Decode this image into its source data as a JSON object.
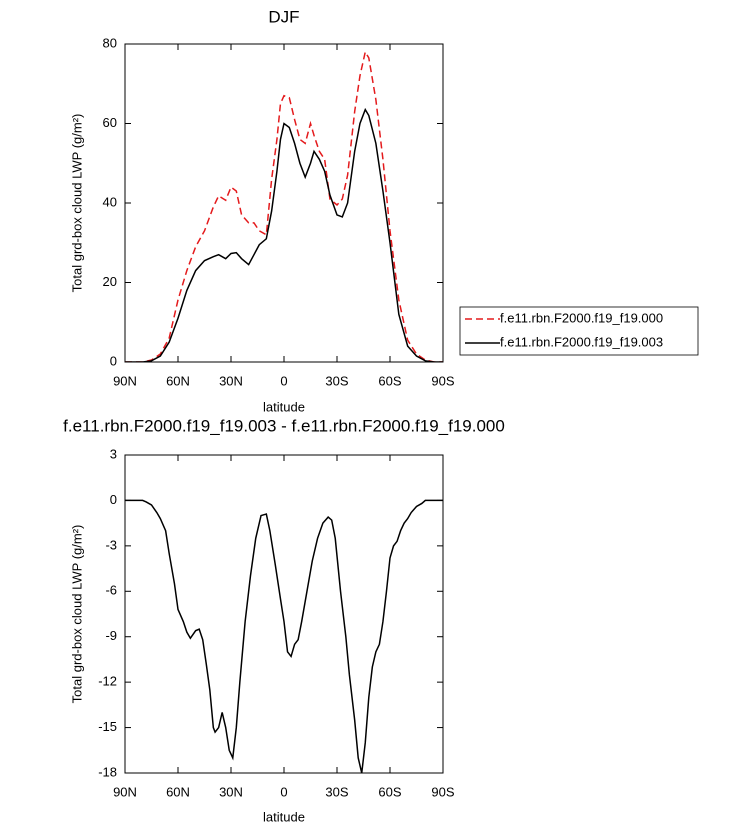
{
  "chart_data": [
    {
      "type": "line",
      "title": "DJF",
      "x_label": "latitude",
      "y_label": "Total grd-box cloud LWP (g/m²)",
      "x": [
        90,
        85,
        80,
        75,
        70,
        65,
        60,
        55,
        50,
        45,
        40,
        37,
        33,
        30,
        27,
        24,
        20,
        17,
        14,
        10,
        7,
        4,
        2,
        0,
        -3,
        -6,
        -9,
        -12,
        -15,
        -17,
        -20,
        -23,
        -26,
        -30,
        -33,
        -36,
        -40,
        -43,
        -46,
        -48,
        -52,
        -56,
        -60,
        -65,
        -70,
        -75,
        -80,
        -85,
        -90
      ],
      "series": [
        {
          "name": "f.e11.rbn.F2000.f19_f19.000",
          "color": "#e41a1c",
          "line_style": "dashed",
          "values": [
            0,
            0,
            0,
            0.5,
            2,
            6,
            15.6,
            23,
            29,
            33,
            39,
            41.8,
            40.7,
            44,
            43,
            37,
            35,
            35,
            33,
            32,
            46,
            56,
            65,
            67,
            66.5,
            61,
            56,
            55,
            60,
            57,
            53,
            51,
            41,
            39.5,
            41,
            47,
            63,
            72,
            78,
            76.5,
            66,
            51,
            33,
            15.6,
            5.5,
            2,
            0.5,
            0,
            0
          ]
        },
        {
          "name": "f.e11.rbn.F2000.f19_f19.003",
          "color": "#000000",
          "line_style": "solid",
          "values": [
            0,
            0,
            0,
            0.3,
            1.5,
            5,
            11,
            18,
            23,
            25.5,
            26.5,
            27,
            26,
            27.3,
            27.5,
            26,
            24.5,
            27,
            29.5,
            31,
            38,
            48,
            56,
            60,
            59,
            55,
            50,
            46.5,
            50,
            53,
            51,
            48,
            42,
            37,
            36.5,
            40,
            53,
            60,
            63.5,
            62,
            55,
            43,
            30,
            12,
            4,
            1.5,
            0.3,
            0,
            0
          ]
        }
      ],
      "xlim": [
        90,
        -90
      ],
      "xticks": [
        {
          "value": 90,
          "label": "90N"
        },
        {
          "value": 60,
          "label": "60N"
        },
        {
          "value": 30,
          "label": "30N"
        },
        0,
        {
          "value": -30,
          "label": "30S"
        },
        {
          "value": -60,
          "label": "60S"
        },
        {
          "value": -90,
          "label": "90S"
        }
      ],
      "ylim": [
        0,
        80
      ],
      "yticks": [
        0,
        20,
        40,
        60,
        80
      ],
      "legend": "right"
    },
    {
      "type": "line",
      "title": "f.e11.rbn.F2000.f19_f19.003 - f.e11.rbn.F2000.f19_f19.000",
      "x_label": "latitude",
      "y_label": "Total grd-box cloud LWP (g/m²)",
      "x": [
        90,
        85,
        80,
        78,
        75,
        72,
        70,
        67,
        65,
        62,
        60,
        57,
        55,
        53,
        50,
        48,
        46,
        44,
        42,
        40,
        39,
        37,
        35,
        33,
        31,
        29,
        27,
        25,
        22,
        19,
        16,
        13,
        10,
        8,
        5,
        2,
        0,
        -2,
        -4,
        -6,
        -8,
        -10,
        -13,
        -16,
        -19,
        -22,
        -25,
        -27,
        -29,
        -32,
        -35,
        -37,
        -40,
        -42,
        -44,
        -46,
        -48,
        -50,
        -52,
        -54,
        -56,
        -58,
        -60,
        -62,
        -64,
        -66,
        -68,
        -70,
        -72,
        -75,
        -78,
        -80,
        -82,
        -85,
        -90
      ],
      "series": [
        {
          "color": "#000000",
          "line_style": "solid",
          "values": [
            0,
            0,
            0,
            -0.1,
            -0.3,
            -0.8,
            -1.2,
            -2,
            -3.5,
            -5.5,
            -7.2,
            -8,
            -8.7,
            -9.1,
            -8.6,
            -8.5,
            -9.2,
            -10.8,
            -12.5,
            -15,
            -15.3,
            -15,
            -14,
            -15,
            -16.5,
            -17,
            -15,
            -12,
            -8,
            -5,
            -2.5,
            -1,
            -0.9,
            -2,
            -4.2,
            -6.5,
            -8,
            -10,
            -10.3,
            -9.5,
            -9.2,
            -8,
            -6,
            -4,
            -2.5,
            -1.5,
            -1.1,
            -1.3,
            -2.5,
            -6,
            -9,
            -11.5,
            -14.5,
            -17,
            -18,
            -16,
            -13,
            -11,
            -10,
            -9.5,
            -8,
            -6,
            -3.8,
            -3,
            -2.7,
            -2,
            -1.5,
            -1.2,
            -0.8,
            -0.4,
            -0.2,
            0,
            0,
            0,
            0
          ]
        }
      ],
      "xlim": [
        90,
        -90
      ],
      "xticks": [
        {
          "value": 90,
          "label": "90N"
        },
        {
          "value": 60,
          "label": "60N"
        },
        {
          "value": 30,
          "label": "30N"
        },
        0,
        {
          "value": -30,
          "label": "30S"
        },
        {
          "value": -60,
          "label": "60S"
        },
        {
          "value": -90,
          "label": "90S"
        }
      ],
      "ylim": [
        -18,
        3
      ],
      "yticks": [
        -18,
        -15,
        -12,
        -9,
        -6,
        -3,
        0,
        3
      ]
    }
  ]
}
